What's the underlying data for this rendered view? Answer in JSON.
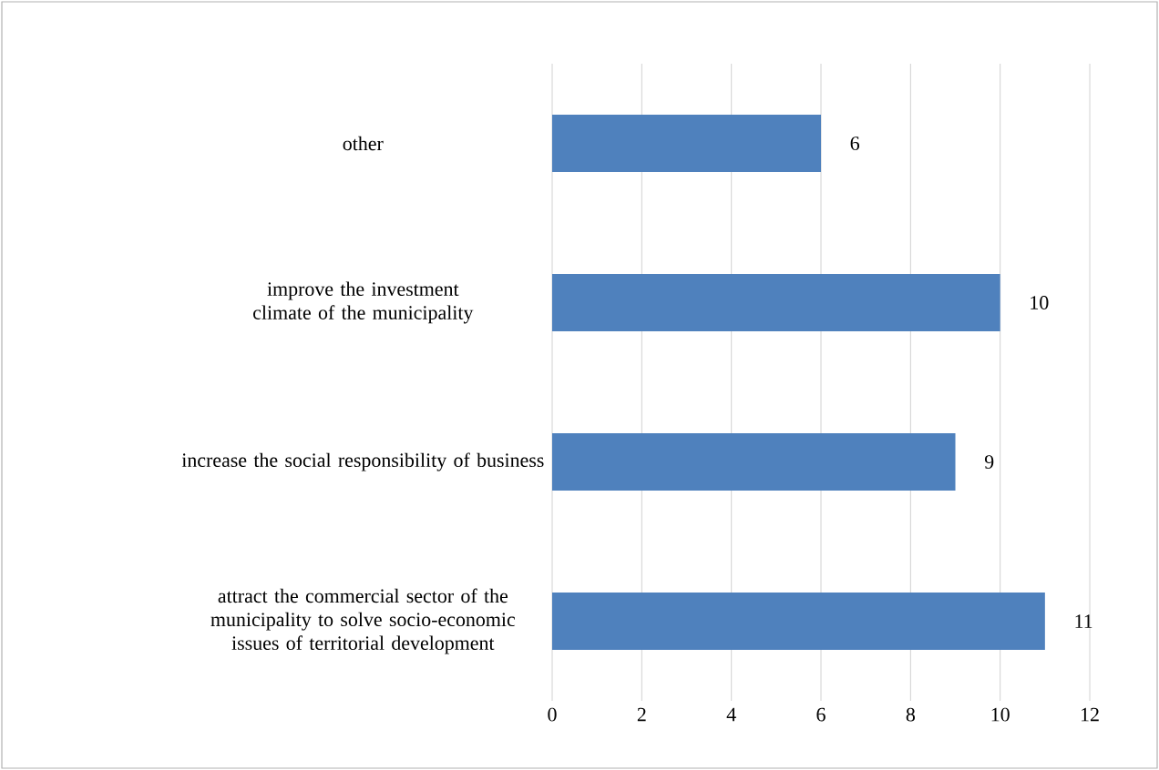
{
  "chart_data": {
    "type": "bar",
    "orientation": "horizontal",
    "categories": [
      "other",
      "improve the investment climate of the municipality",
      "increase the social responsibility of business",
      "attract the commercial sector of the municipality to solve socio-economic issues of territorial development"
    ],
    "values": [
      6,
      10,
      9,
      11
    ],
    "color": "#4f81bd",
    "xlim": [
      0,
      12
    ],
    "xticks": [
      0,
      2,
      4,
      6,
      8,
      10,
      12
    ],
    "grid": "x",
    "data_labels": true
  }
}
